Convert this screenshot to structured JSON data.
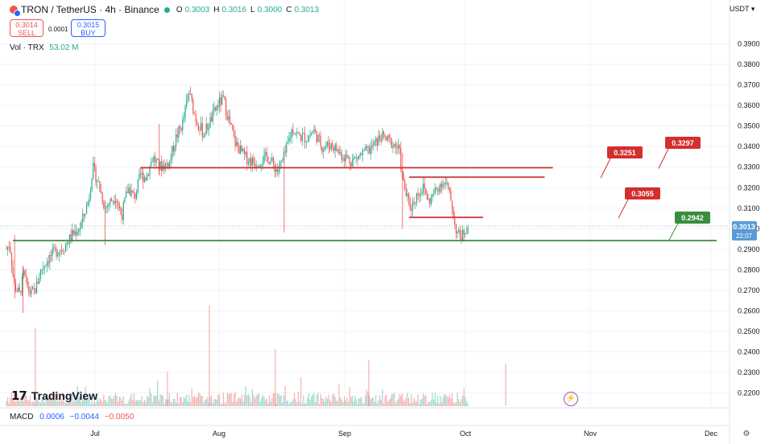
{
  "header": {
    "pair": "TRON / TetherUS · 4h · Binance",
    "ohlc": [
      {
        "label": "O",
        "value": "0.3003"
      },
      {
        "label": "H",
        "value": "0.3016"
      },
      {
        "label": "L",
        "value": "0.3000"
      },
      {
        "label": "C",
        "value": "0.3013"
      }
    ]
  },
  "trade": {
    "sell_price": "0.3014",
    "sell_label": "SELL",
    "spread": "0.0001",
    "buy_price": "0.3015",
    "buy_label": "BUY"
  },
  "volume": {
    "label": "Vol · TRX",
    "value": "53.02 M"
  },
  "macd": {
    "label": "MACD",
    "v1": "0.0006",
    "v2": "−0.0044",
    "v3": "−0.0050"
  },
  "currency_label": "USDT ▾",
  "brand": "TradingView",
  "colors": {
    "up": "#22ab94",
    "down": "#ef5350",
    "resistance": "#d32f2f",
    "support": "#388e3c",
    "price_tag": "#5b9bd5"
  },
  "chart_data": {
    "type": "candlestick",
    "y_ticks": [
      "0.3900",
      "0.3800",
      "0.3700",
      "0.3600",
      "0.3500",
      "0.3400",
      "0.3300",
      "0.3200",
      "0.3100",
      "0.3000",
      "0.2900",
      "0.2800",
      "0.2700",
      "0.2600",
      "0.2500",
      "0.2400",
      "0.2300",
      "0.2200"
    ],
    "ylim": [
      0.2155,
      0.3965
    ],
    "x_labels": [
      "Jul",
      "Aug",
      "Sep",
      "Oct",
      "Nov",
      "Dec"
    ],
    "price_path": [
      {
        "d": 0,
        "p": 0.29
      },
      {
        "d": 4,
        "p": 0.293
      },
      {
        "d": 9,
        "p": 0.273
      },
      {
        "d": 16,
        "p": 0.268
      },
      {
        "d": 21,
        "p": 0.278
      },
      {
        "d": 25,
        "p": 0.272
      },
      {
        "d": 30,
        "p": 0.268
      },
      {
        "d": 36,
        "p": 0.271
      },
      {
        "d": 42,
        "p": 0.28
      },
      {
        "d": 50,
        "p": 0.285
      },
      {
        "d": 60,
        "p": 0.289
      },
      {
        "d": 70,
        "p": 0.291
      },
      {
        "d": 80,
        "p": 0.297
      },
      {
        "d": 90,
        "p": 0.301
      },
      {
        "d": 100,
        "p": 0.314
      },
      {
        "d": 105,
        "p": 0.33
      },
      {
        "d": 112,
        "p": 0.322
      },
      {
        "d": 120,
        "p": 0.31
      },
      {
        "d": 128,
        "p": 0.314
      },
      {
        "d": 133,
        "p": 0.316
      },
      {
        "d": 140,
        "p": 0.306
      },
      {
        "d": 148,
        "p": 0.32
      },
      {
        "d": 156,
        "p": 0.315
      },
      {
        "d": 163,
        "p": 0.326
      },
      {
        "d": 170,
        "p": 0.325
      },
      {
        "d": 178,
        "p": 0.335
      },
      {
        "d": 186,
        "p": 0.33
      },
      {
        "d": 198,
        "p": 0.332
      },
      {
        "d": 206,
        "p": 0.344
      },
      {
        "d": 215,
        "p": 0.352
      },
      {
        "d": 222,
        "p": 0.367
      },
      {
        "d": 230,
        "p": 0.354
      },
      {
        "d": 240,
        "p": 0.346
      },
      {
        "d": 250,
        "p": 0.354
      },
      {
        "d": 258,
        "p": 0.361
      },
      {
        "d": 264,
        "p": 0.363
      },
      {
        "d": 270,
        "p": 0.354
      },
      {
        "d": 278,
        "p": 0.342
      },
      {
        "d": 290,
        "p": 0.335
      },
      {
        "d": 302,
        "p": 0.332
      },
      {
        "d": 318,
        "p": 0.335
      },
      {
        "d": 330,
        "p": 0.328
      },
      {
        "d": 338,
        "p": 0.335
      },
      {
        "d": 348,
        "p": 0.349
      },
      {
        "d": 356,
        "p": 0.345
      },
      {
        "d": 366,
        "p": 0.344
      },
      {
        "d": 374,
        "p": 0.348
      },
      {
        "d": 384,
        "p": 0.34
      },
      {
        "d": 396,
        "p": 0.341
      },
      {
        "d": 408,
        "p": 0.336
      },
      {
        "d": 420,
        "p": 0.333
      },
      {
        "d": 432,
        "p": 0.336
      },
      {
        "d": 444,
        "p": 0.339
      },
      {
        "d": 456,
        "p": 0.345
      },
      {
        "d": 464,
        "p": 0.343
      },
      {
        "d": 472,
        "p": 0.341
      },
      {
        "d": 478,
        "p": 0.338
      },
      {
        "d": 482,
        "p": 0.324
      },
      {
        "d": 486,
        "p": 0.317
      },
      {
        "d": 492,
        "p": 0.31
      },
      {
        "d": 500,
        "p": 0.317
      },
      {
        "d": 508,
        "p": 0.32
      },
      {
        "d": 514,
        "p": 0.313
      },
      {
        "d": 522,
        "p": 0.318
      },
      {
        "d": 530,
        "p": 0.323
      },
      {
        "d": 536,
        "p": 0.321
      },
      {
        "d": 542,
        "p": 0.312
      },
      {
        "d": 546,
        "p": 0.301
      },
      {
        "d": 550,
        "p": 0.297
      },
      {
        "d": 554,
        "p": 0.296
      },
      {
        "d": 558,
        "p": 0.2995
      },
      {
        "d": 562,
        "p": 0.3013
      }
    ],
    "spikes": [
      {
        "d": 10,
        "hi": 0.297,
        "lo": 0.266
      },
      {
        "d": 20,
        "hi": 0.282,
        "lo": 0.259
      },
      {
        "d": 120,
        "hi": 0.314,
        "lo": 0.292
      },
      {
        "d": 186,
        "hi": 0.351,
        "lo": 0.326
      },
      {
        "d": 338,
        "hi": 0.335,
        "lo": 0.298
      },
      {
        "d": 482,
        "hi": 0.337,
        "lo": 0.3
      }
    ],
    "levels": [
      {
        "name": "resistance-0.3297",
        "price": 0.3297,
        "from": 163,
        "to": 665,
        "color": "#d32f2f",
        "label": "0.3297"
      },
      {
        "name": "resistance-0.3251",
        "price": 0.3251,
        "from": 490,
        "to": 655,
        "color": "#d32f2f",
        "label": "0.3251"
      },
      {
        "name": "resistance-0.3055",
        "price": 0.3055,
        "from": 490,
        "to": 580,
        "color": "#d32f2f",
        "label": "0.3055"
      },
      {
        "name": "support-0.2942",
        "price": 0.2942,
        "from": 0,
        "to": 700,
        "color": "#388e3c",
        "label": "0.2942"
      }
    ],
    "current_price": {
      "value": "0.3013",
      "countdown": "22:07"
    }
  }
}
